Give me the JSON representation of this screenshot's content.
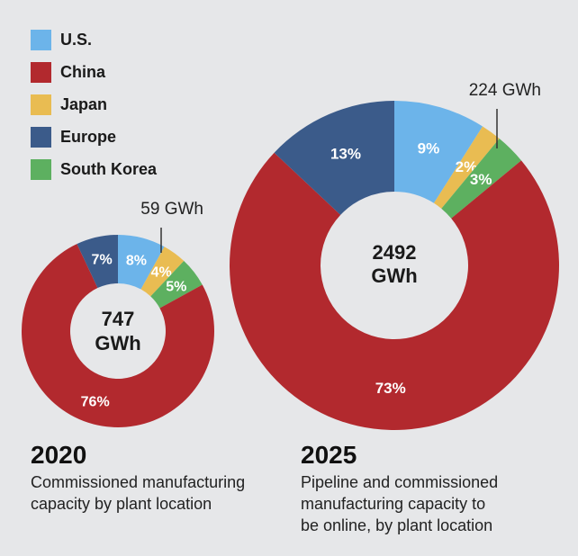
{
  "legend": [
    {
      "label": "U.S.",
      "color": "#6cb4ea"
    },
    {
      "label": "China",
      "color": "#b2292e"
    },
    {
      "label": "Japan",
      "color": "#e9bc52"
    },
    {
      "label": "Europe",
      "color": "#3b5b8a"
    },
    {
      "label": "South Korea",
      "color": "#5db060"
    }
  ],
  "chart_data": [
    {
      "type": "pie",
      "year": "2020",
      "caption_lines": [
        "Commissioned manufacturing",
        "capacity by plant location"
      ],
      "center_lines": [
        "747",
        "GWh"
      ],
      "callout": "59 GWh",
      "slices": [
        {
          "name": "U.S.",
          "value": 8,
          "label": "8%"
        },
        {
          "name": "Japan",
          "value": 4,
          "label": "4%"
        },
        {
          "name": "South Korea",
          "value": 5,
          "label": "5%"
        },
        {
          "name": "China",
          "value": 76,
          "label": "76%"
        },
        {
          "name": "Europe",
          "value": 7,
          "label": "7%"
        }
      ]
    },
    {
      "type": "pie",
      "year": "2025",
      "caption_lines": [
        "Pipeline and commissioned",
        "manufacturing capacity to",
        "be online, by plant location"
      ],
      "center_lines": [
        "2492",
        "GWh"
      ],
      "callout": "224 GWh",
      "slices": [
        {
          "name": "U.S.",
          "value": 9,
          "label": "9%"
        },
        {
          "name": "Japan",
          "value": 2,
          "label": "2%"
        },
        {
          "name": "South Korea",
          "value": 3,
          "label": "3%"
        },
        {
          "name": "China",
          "value": 73,
          "label": "73%"
        },
        {
          "name": "Europe",
          "value": 13,
          "label": "13%"
        }
      ]
    }
  ]
}
